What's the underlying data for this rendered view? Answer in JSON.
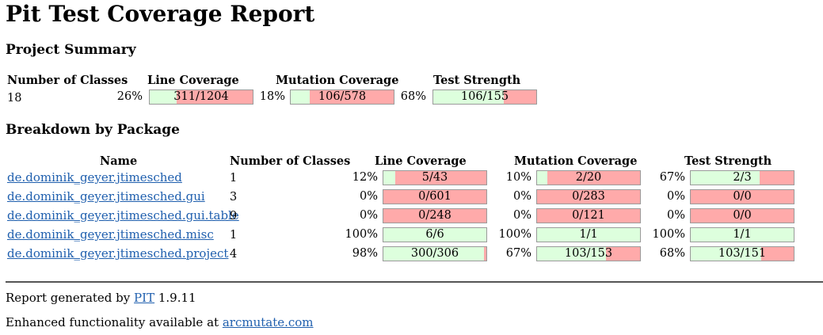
{
  "title": "Pit Test Coverage Report",
  "project_summary": {
    "heading": "Project Summary",
    "headers": {
      "classes": "Number of Classes",
      "line": "Line Coverage",
      "mutation": "Mutation Coverage",
      "strength": "Test Strength"
    },
    "number_of_classes": "18",
    "line": {
      "pct": "26%",
      "label": "311/1204",
      "fraction": 0.258
    },
    "mutation": {
      "pct": "18%",
      "label": "106/578",
      "fraction": 0.183
    },
    "strength": {
      "pct": "68%",
      "label": "106/155",
      "fraction": 0.684
    }
  },
  "breakdown": {
    "heading": "Breakdown by Package",
    "headers": {
      "name": "Name",
      "classes": "Number of Classes",
      "line": "Line Coverage",
      "mutation": "Mutation Coverage",
      "strength": "Test Strength"
    },
    "rows": [
      {
        "name": "de.dominik_geyer.jtimesched",
        "classes": "1",
        "line": {
          "pct": "12%",
          "label": "5/43",
          "fraction": 0.116
        },
        "mutation": {
          "pct": "10%",
          "label": "2/20",
          "fraction": 0.1
        },
        "strength": {
          "pct": "67%",
          "label": "2/3",
          "fraction": 0.667
        }
      },
      {
        "name": "de.dominik_geyer.jtimesched.gui",
        "classes": "3",
        "line": {
          "pct": "0%",
          "label": "0/601",
          "fraction": 0
        },
        "mutation": {
          "pct": "0%",
          "label": "0/283",
          "fraction": 0
        },
        "strength": {
          "pct": "0%",
          "label": "0/0",
          "fraction": 0
        }
      },
      {
        "name": "de.dominik_geyer.jtimesched.gui.table",
        "classes": "9",
        "line": {
          "pct": "0%",
          "label": "0/248",
          "fraction": 0
        },
        "mutation": {
          "pct": "0%",
          "label": "0/121",
          "fraction": 0
        },
        "strength": {
          "pct": "0%",
          "label": "0/0",
          "fraction": 0
        }
      },
      {
        "name": "de.dominik_geyer.jtimesched.misc",
        "classes": "1",
        "line": {
          "pct": "100%",
          "label": "6/6",
          "fraction": 1
        },
        "mutation": {
          "pct": "100%",
          "label": "1/1",
          "fraction": 1
        },
        "strength": {
          "pct": "100%",
          "label": "1/1",
          "fraction": 1
        }
      },
      {
        "name": "de.dominik_geyer.jtimesched.project",
        "classes": "4",
        "line": {
          "pct": "98%",
          "label": "300/306",
          "fraction": 0.98
        },
        "mutation": {
          "pct": "67%",
          "label": "103/153",
          "fraction": 0.673
        },
        "strength": {
          "pct": "68%",
          "label": "103/151",
          "fraction": 0.682
        }
      }
    ]
  },
  "footer": {
    "generated_prefix": "Report generated by",
    "generator_link": "PIT",
    "generator_version": "1.9.11",
    "enhanced_prefix": "Enhanced functionality available at",
    "enhanced_link": "arcmutate.com"
  },
  "colors": {
    "covered": "#ddffdd",
    "uncovered": "#ffaaaa",
    "link": "#1f5fae",
    "bar_border": "#9a9a9a"
  }
}
